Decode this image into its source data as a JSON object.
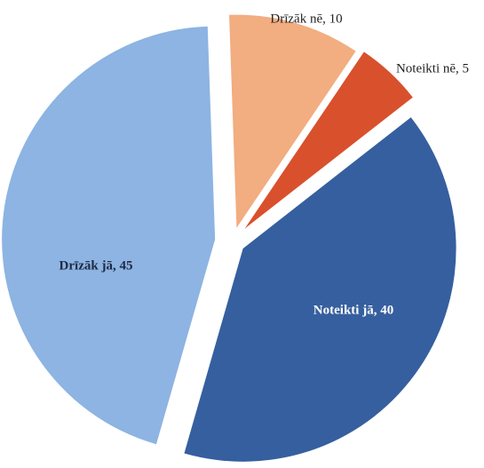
{
  "chart_data": {
    "type": "pie",
    "values": [
      10,
      5,
      40,
      45
    ],
    "value_labels": [
      "Drīzāk nē, 10",
      "Noteikti nē, 5",
      "Noteikti jā, 40",
      "Drīzāk jā, 45"
    ],
    "colors": [
      "#f2ad80",
      "#d9502c",
      "#365f9f",
      "#8db4e2"
    ]
  }
}
